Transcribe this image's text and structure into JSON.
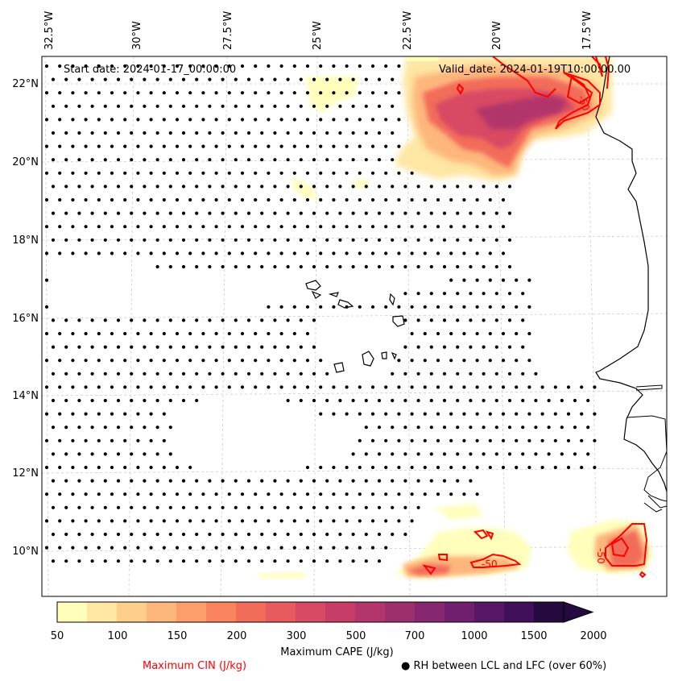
{
  "map": {
    "start_label": "Start date: 2024-01-17_00:00:00",
    "valid_label": "Valid_date: 2024-01-19T10:00:00.00",
    "lon_labels": [
      "32.5°W",
      "30°W",
      "27.5°W",
      "25°W",
      "22.5°W",
      "20°W",
      "17.5°W"
    ],
    "lat_labels": [
      "22°N",
      "20°N",
      "18°N",
      "16°N",
      "14°N",
      "12°N",
      "10°N"
    ],
    "cin_contour_labels": [
      "-50",
      "-50",
      "-50"
    ],
    "colors": {
      "cin": "#ff0000",
      "coast": "#000000",
      "grid": "#cccccc"
    }
  },
  "colorbar": {
    "ticks": [
      "50",
      "100",
      "150",
      "200",
      "300",
      "500",
      "700",
      "1000",
      "1500",
      "2000"
    ],
    "colors": [
      "#fffebb",
      "#fee6a3",
      "#fecf8c",
      "#fdb67b",
      "#fc9e6c",
      "#f9845e",
      "#f26c5a",
      "#e75b5f",
      "#d84a63",
      "#c63d68",
      "#b2366b",
      "#9c2f6e",
      "#86286f",
      "#701f6e",
      "#591768",
      "#40105a",
      "#240a3e"
    ],
    "title": "Maximum CAPE (J/kg)"
  },
  "legend": {
    "cin": "Maximum CIN (J/kg)",
    "rh_marker": "●",
    "rh": "RH between LCL and LFC (over 60%)"
  }
}
